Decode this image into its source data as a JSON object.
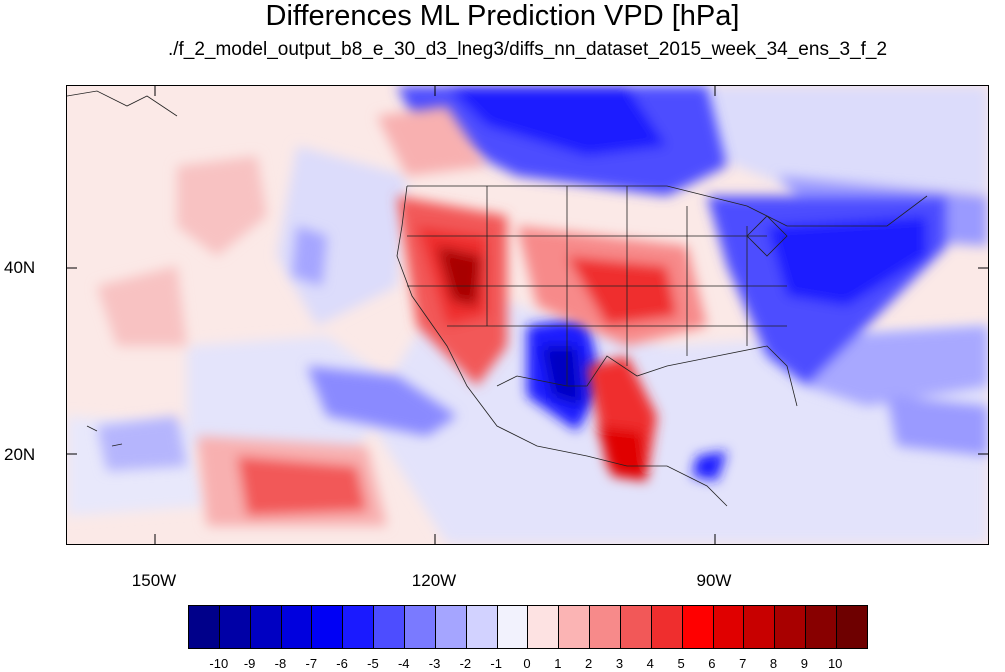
{
  "title": "Differences ML Prediction VPD [hPa]",
  "subtitle": "./f_2_model_output_b8_e_30_d3_lneg3/diffs_nn_dataset_2015_week_34_ens_3_f_2",
  "map": {
    "latitude_labels": [
      "40N",
      "20N"
    ],
    "longitude_labels": [
      "150W",
      "120W",
      "90W"
    ]
  },
  "colorbar": {
    "labels": [
      "-10",
      "-9",
      "-8",
      "-7",
      "-6",
      "-5",
      "-4",
      "-3",
      "-2",
      "-1",
      "0",
      "1",
      "2",
      "3",
      "4",
      "5",
      "6",
      "7",
      "8",
      "9",
      "10"
    ],
    "colors": [
      "#00008a",
      "#0000a6",
      "#0000c2",
      "#0000de",
      "#0000f5",
      "#1a1aff",
      "#4d4dff",
      "#7a7aff",
      "#a5a5ff",
      "#d2d2ff",
      "#f2f2fd",
      "#fde2e2",
      "#fbb4b4",
      "#f78a8a",
      "#f25858",
      "#ef2e2e",
      "#ff0000",
      "#e00000",
      "#c80000",
      "#a80000",
      "#880000",
      "#6e0000"
    ]
  }
}
